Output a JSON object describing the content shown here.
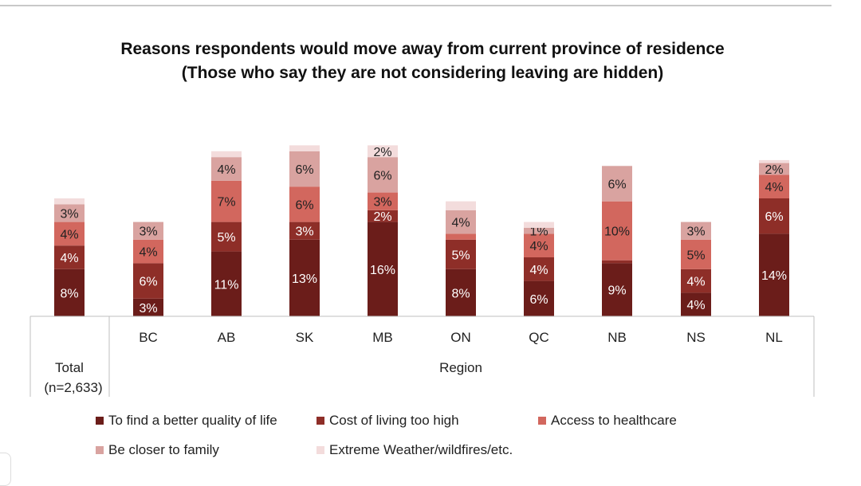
{
  "title_line1": "Reasons respondents would move away from current province of residence",
  "title_line2": "(Those who say they are not considering leaving are hidden)",
  "chart_data": {
    "type": "bar",
    "stacked": true,
    "title": "Reasons respondents would move away from current province of residence (Those who say they are not considering leaving are hidden)",
    "categories": [
      "Total (n=2,633)",
      "BC",
      "AB",
      "SK",
      "MB",
      "ON",
      "QC",
      "NB",
      "NS",
      "NL"
    ],
    "group_label": "Region",
    "total_label_line1": "Total",
    "total_label_line2": "(n=2,633)",
    "series": [
      {
        "name": "To find a better quality of life",
        "color": "#6b1d1a",
        "values": [
          8,
          3,
          11,
          13,
          16,
          8,
          6,
          9,
          4,
          14
        ],
        "labels": [
          "8%",
          "3%",
          "11%",
          "13%",
          "16%",
          "8%",
          "6%",
          "9%",
          "4%",
          "14%"
        ]
      },
      {
        "name": "Cost of living too high",
        "color": "#8e2e28",
        "values": [
          4,
          6,
          5,
          3,
          2,
          5,
          4,
          0.5,
          4,
          6
        ],
        "labels": [
          "4%",
          "6%",
          "5%",
          "3%",
          "2%",
          "5%",
          "4%",
          "",
          "4%",
          "6%"
        ]
      },
      {
        "name": "Access to healthcare",
        "color": "#d2675e",
        "values": [
          4,
          4,
          7,
          6,
          3,
          1,
          4,
          10,
          5,
          4
        ],
        "labels": [
          "4%",
          "4%",
          "7%",
          "6%",
          "3%",
          "",
          "4%",
          "10%",
          "5%",
          "4%"
        ]
      },
      {
        "name": "Be closer to family",
        "color": "#d9a3a0",
        "values": [
          3,
          3,
          4,
          6,
          6,
          4,
          1,
          6,
          3,
          2
        ],
        "labels": [
          "3%",
          "3%",
          "4%",
          "6%",
          "6%",
          "4%",
          "1%",
          "6%",
          "3%",
          "2%"
        ]
      },
      {
        "name": "Extreme Weather/wildfires/etc.",
        "color": "#f3dcdc",
        "values": [
          1,
          0,
          1,
          1,
          2,
          1.5,
          1,
          0,
          0,
          0.5
        ],
        "labels": [
          "",
          "",
          "",
          "",
          "2%",
          "",
          "",
          "",
          "",
          ""
        ]
      }
    ],
    "ylim": [
      0,
      28
    ],
    "grid": false,
    "legend_position": "bottom"
  }
}
